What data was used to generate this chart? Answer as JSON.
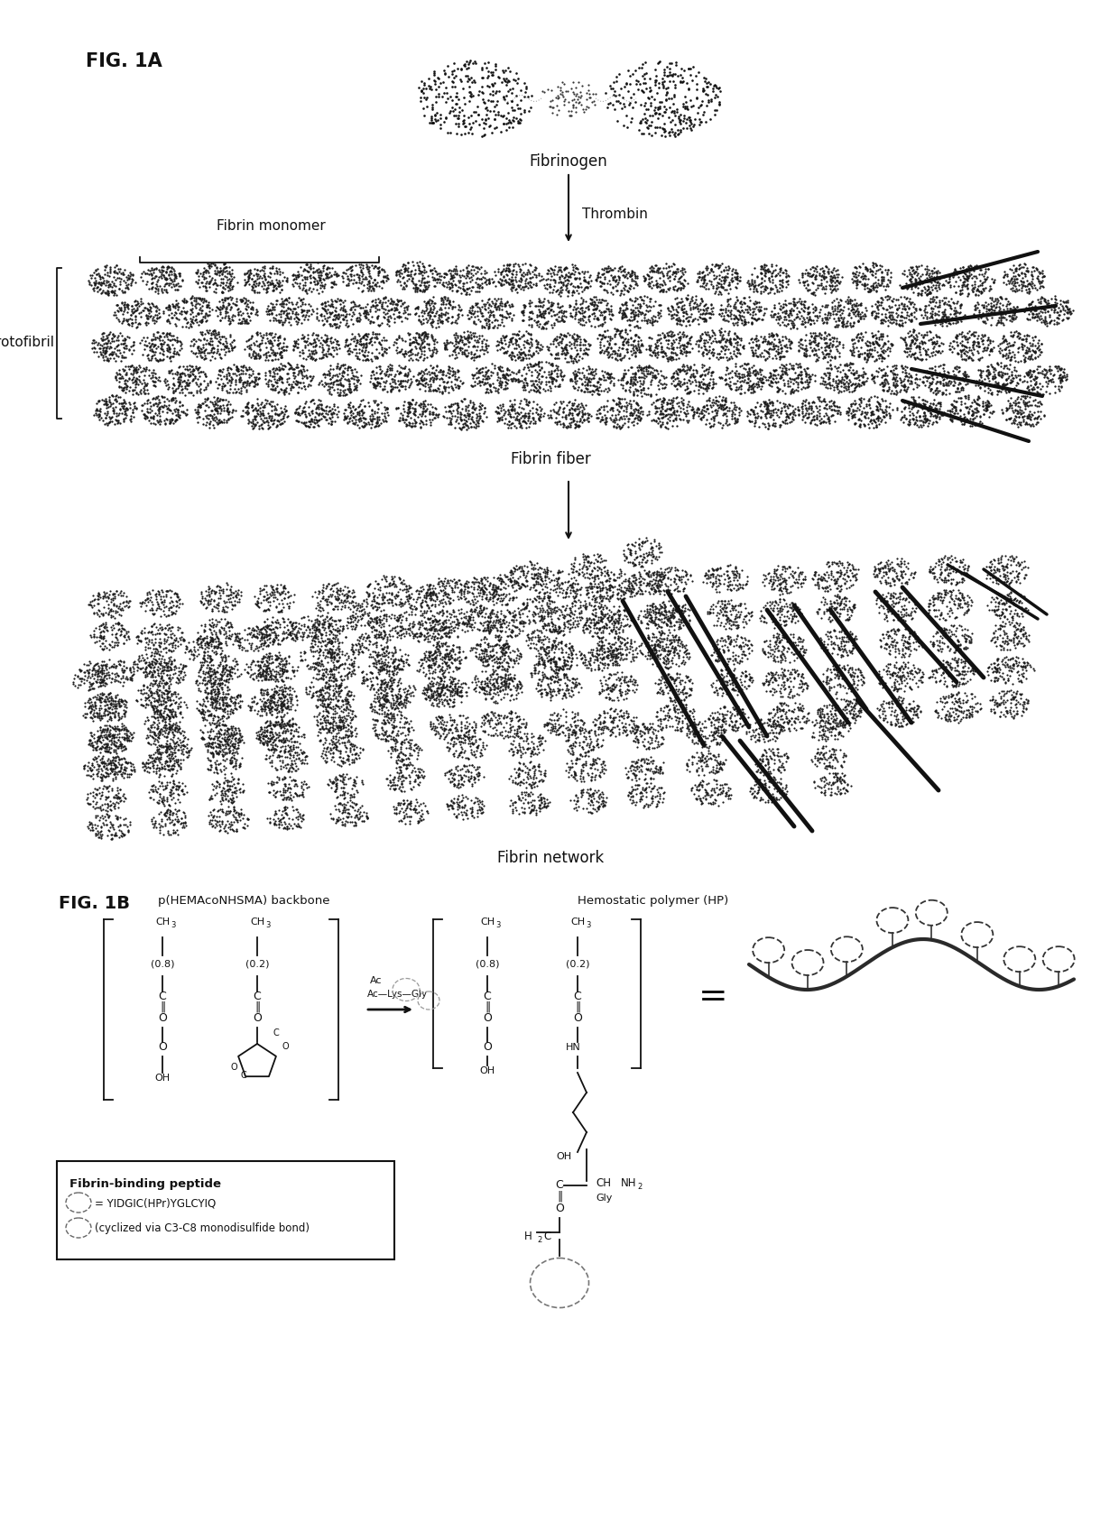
{
  "fig_label_a": "FIG. 1A",
  "fig_label_b": "FIG. 1B",
  "label_fibrinogen": "Fibrinogen",
  "label_thrombin": "Thrombin",
  "label_fibrin_monomer": "Fibrin monomer",
  "label_protofibril": "Protofibril",
  "label_fibrin_fiber": "Fibrin fiber",
  "label_fibrin_network": "Fibrin network",
  "label_backbone": "p(HEMAcoNHSMA) backbone",
  "label_hp": "Hemostatic polymer (HP)",
  "label_fbp": "Fibrin-binding peptide",
  "label_peptide": "= YIDGIC(HPr)YGLCYIQ",
  "label_cyclized": "(cyclized via C3-C8 monodisulfide bond)",
  "bg_color": "#ffffff",
  "dark_color": "#111111",
  "mid_color": "#444444",
  "stipple_color": "#999999"
}
